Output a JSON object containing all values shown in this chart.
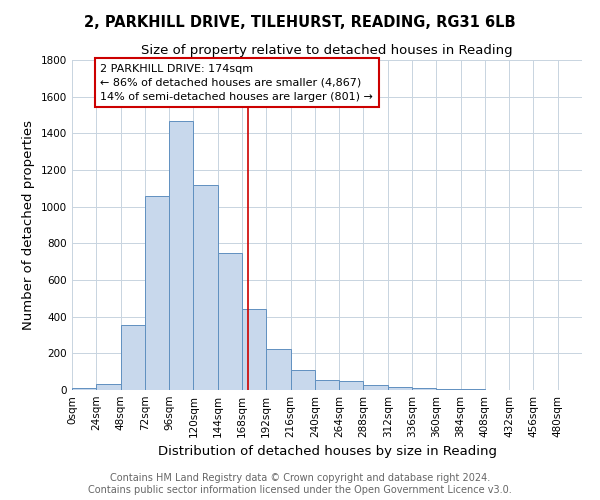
{
  "title_line1": "2, PARKHILL DRIVE, TILEHURST, READING, RG31 6LB",
  "title_line2": "Size of property relative to detached houses in Reading",
  "xlabel": "Distribution of detached houses by size in Reading",
  "ylabel": "Number of detached properties",
  "bar_values": [
    10,
    35,
    355,
    1060,
    1465,
    1120,
    745,
    440,
    225,
    108,
    55,
    48,
    25,
    18,
    10,
    5,
    3,
    2,
    0,
    0,
    0
  ],
  "bin_edges": [
    0,
    24,
    48,
    72,
    96,
    120,
    144,
    168,
    192,
    216,
    240,
    264,
    288,
    312,
    336,
    360,
    384,
    408,
    432,
    456,
    480,
    504
  ],
  "tick_labels": [
    "0sqm",
    "24sqm",
    "48sqm",
    "72sqm",
    "96sqm",
    "120sqm",
    "144sqm",
    "168sqm",
    "192sqm",
    "216sqm",
    "240sqm",
    "264sqm",
    "288sqm",
    "312sqm",
    "336sqm",
    "360sqm",
    "384sqm",
    "408sqm",
    "432sqm",
    "456sqm",
    "480sqm"
  ],
  "bar_color": "#c8d8ec",
  "bar_edge_color": "#6090c0",
  "property_value": 174,
  "property_line_color": "#cc0000",
  "annotation_text": "2 PARKHILL DRIVE: 174sqm\n← 86% of detached houses are smaller (4,867)\n14% of semi-detached houses are larger (801) →",
  "annotation_box_color": "white",
  "annotation_box_edge_color": "#cc0000",
  "ylim": [
    0,
    1800
  ],
  "yticks": [
    0,
    200,
    400,
    600,
    800,
    1000,
    1200,
    1400,
    1600,
    1800
  ],
  "footnote": "Contains HM Land Registry data © Crown copyright and database right 2024.\nContains public sector information licensed under the Open Government Licence v3.0.",
  "bg_color": "#ffffff",
  "plot_bg_color": "#ffffff",
  "grid_color": "#c8d4e0",
  "title_fontsize": 10.5,
  "subtitle_fontsize": 9.5,
  "axis_label_fontsize": 9.5,
  "tick_fontsize": 7.5,
  "annotation_fontsize": 8,
  "footnote_fontsize": 7
}
